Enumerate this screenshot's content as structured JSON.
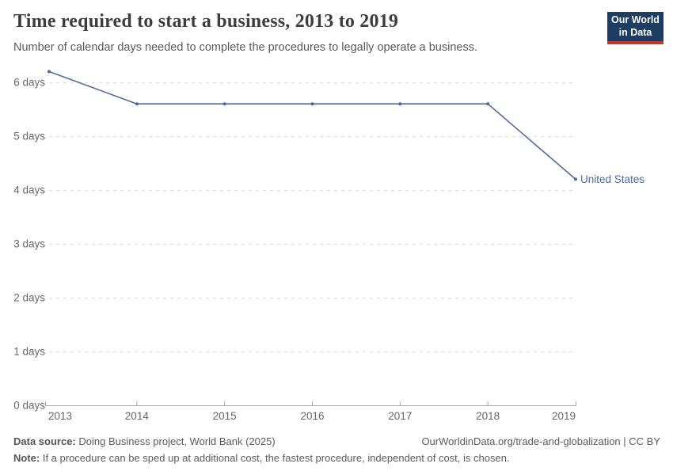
{
  "header": {
    "title": "Time required to start a business, 2013 to 2019",
    "subtitle": "Number of calendar days needed to complete the procedures to legally operate a business.",
    "logo": {
      "line1": "Our World",
      "line2": "in Data"
    }
  },
  "chart_data": {
    "type": "line",
    "title": "Time required to start a business, 2013 to 2019",
    "x": [
      2013,
      2014,
      2015,
      2016,
      2017,
      2018,
      2019
    ],
    "series": [
      {
        "name": "United States",
        "values": [
          6.2,
          5.6,
          5.6,
          5.6,
          5.6,
          5.6,
          4.2
        ]
      }
    ],
    "x_tick_labels": [
      "2013",
      "2014",
      "2015",
      "2016",
      "2017",
      "2018",
      "2019"
    ],
    "y_ticks": [
      {
        "value": 0,
        "label": "0 days"
      },
      {
        "value": 1,
        "label": "1 days"
      },
      {
        "value": 2,
        "label": "2 days"
      },
      {
        "value": 3,
        "label": "3 days"
      },
      {
        "value": 4,
        "label": "4 days"
      },
      {
        "value": 5,
        "label": "5 days"
      },
      {
        "value": 6,
        "label": "6 days"
      }
    ],
    "ylim": [
      0,
      6.3
    ],
    "grid": "horizontal-dashed",
    "legend_position": "end-of-line",
    "xlabel": "",
    "ylabel": ""
  },
  "colors": {
    "line": "#4c6a9c",
    "grid": "#dcdcdc",
    "axis": "#a8a8a8",
    "tick_text": "#666666",
    "title_text": "#3d3d3d",
    "body_text": "#5a5a5a",
    "logo_bg": "#1d3d63",
    "logo_stripe": "#c9352d",
    "logo_text": "#ffffff"
  },
  "footer": {
    "source_label": "Data source:",
    "source_text": " Doing Business project, World Bank (2025)",
    "link_text": "OurWorldinData.org/trade-and-globalization | CC BY",
    "note_label": "Note:",
    "note_text": " If a procedure can be sped up at additional cost, the fastest procedure, independent of cost, is chosen."
  }
}
